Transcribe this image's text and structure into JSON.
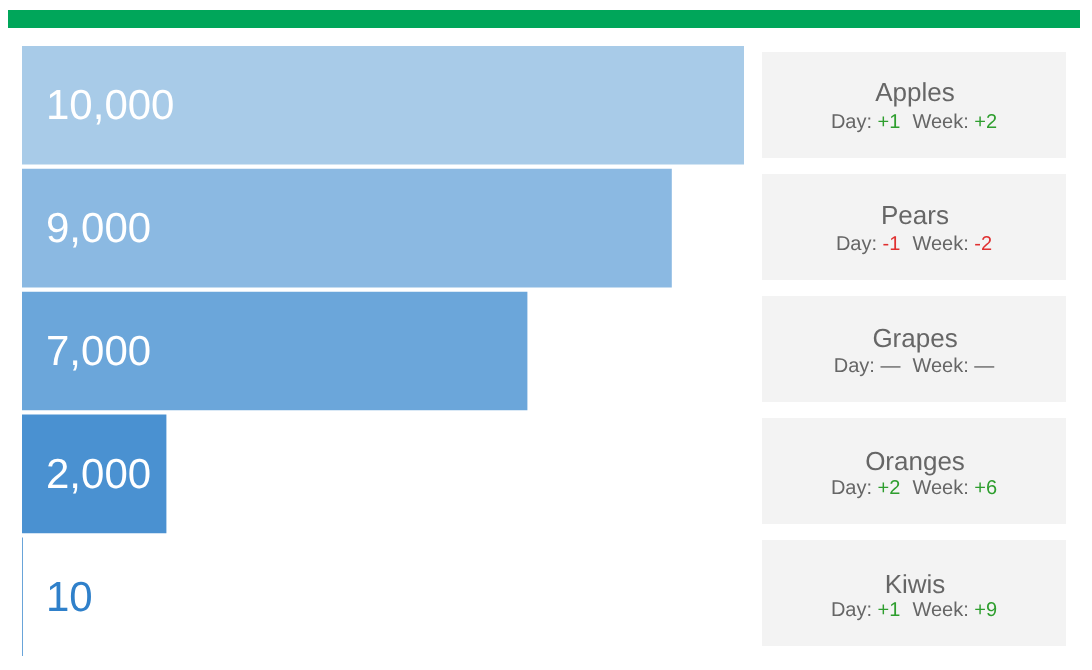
{
  "chart_data": [
    {
      "type": "bar",
      "orientation": "horizontal",
      "categories": [
        "Apples",
        "Pears",
        "Grapes",
        "Oranges",
        "Kiwis"
      ],
      "values": [
        10000,
        9000,
        7000,
        2000,
        10
      ],
      "colors": [
        "#a8cbe8",
        "#8bb9e2",
        "#6ba6da",
        "#4a91d1",
        "#2f80ca"
      ],
      "xlim": [
        0,
        10000
      ],
      "tick_labels": "y",
      "value_labels": [
        "10,000",
        "9,000",
        "7,000",
        "2,000",
        "10"
      ],
      "grid": false,
      "legend": false
    },
    {
      "type": "other",
      "annotations": [
        "Day: +1",
        "Week: +2",
        "Day: -1",
        "Week: -2",
        "Day: —",
        "Week: —",
        "Day: +2",
        "Week: +6",
        "Day: +1",
        "Week: +9"
      ]
    }
  ]
}
